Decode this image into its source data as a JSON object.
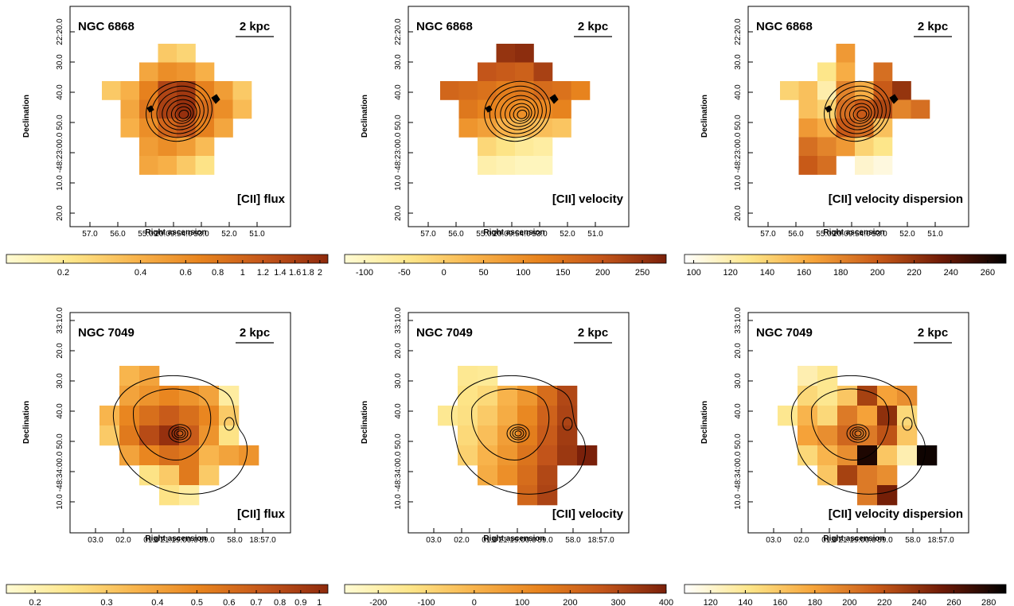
{
  "chart_data": [
    {
      "type": "heatmap",
      "title": "NGC 6868",
      "scalebar": "2 kpc",
      "label": "[CII] flux",
      "xlabel": "Right ascension",
      "ylabel": "Declination",
      "x_tick_labels": [
        "57.0",
        "56.0",
        "55.0",
        "20:09:54.0",
        "53.0",
        "52.0",
        "51.0"
      ],
      "y_tick_labels": [
        "22:20.0",
        "30.0",
        "40.0",
        "50.0",
        "-48:23:00.0",
        "10.0",
        "20.0"
      ],
      "log": true,
      "clim": [
        0.12,
        2.15
      ],
      "cticks": [
        0.2,
        0.4,
        0.6,
        0.8,
        1,
        1.2,
        1.4,
        1.6,
        1.8,
        2
      ],
      "colors": [
        "#fffbd4",
        "#fde68a",
        "#f8b44c",
        "#e8841e",
        "#c4561a",
        "#8f2a0c"
      ],
      "values": [
        [
          null,
          null,
          null,
          0.3,
          0.26,
          null,
          null,
          null
        ],
        [
          null,
          null,
          0.45,
          0.6,
          0.55,
          0.4,
          null,
          null
        ],
        [
          0.3,
          0.4,
          0.7,
          1.5,
          1.8,
          0.7,
          0.5,
          0.3
        ],
        [
          null,
          0.45,
          0.8,
          1.6,
          2.0,
          0.9,
          0.6,
          0.35
        ],
        [
          null,
          0.4,
          0.6,
          1.0,
          1.2,
          0.7,
          0.45,
          null
        ],
        [
          null,
          null,
          0.5,
          0.6,
          0.5,
          0.35,
          null,
          null
        ],
        [
          null,
          null,
          0.45,
          0.4,
          0.3,
          0.22,
          null,
          null
        ]
      ]
    },
    {
      "type": "heatmap",
      "title": "NGC 6868",
      "scalebar": "2 kpc",
      "label": "[CII] velocity",
      "xlabel": "Right ascension",
      "ylabel": "Declination",
      "x_tick_labels": [
        "57.0",
        "56.0",
        "55.0",
        "20:09:54.0",
        "53.0",
        "52.0",
        "51.0"
      ],
      "y_tick_labels": [
        "22:20.0",
        "30.0",
        "40.0",
        "50.0",
        "-48:23:00.0",
        "10.0",
        "20.0"
      ],
      "log": false,
      "clim": [
        -125,
        280
      ],
      "cticks": [
        -100,
        -50,
        0,
        50,
        100,
        150,
        200,
        250
      ],
      "colors": [
        "#fffbd4",
        "#fde68a",
        "#f8b44c",
        "#e8841e",
        "#c4561a",
        "#7a200a"
      ],
      "values": [
        [
          null,
          null,
          null,
          250,
          260,
          null,
          null,
          null
        ],
        [
          null,
          null,
          200,
          190,
          180,
          230,
          null,
          null
        ],
        [
          170,
          160,
          150,
          130,
          140,
          160,
          150,
          120
        ],
        [
          null,
          140,
          120,
          110,
          100,
          110,
          120,
          null
        ],
        [
          null,
          90,
          70,
          40,
          30,
          20,
          10,
          null
        ],
        [
          null,
          null,
          -20,
          -40,
          -60,
          -70,
          null,
          null
        ],
        [
          null,
          null,
          -80,
          -90,
          -100,
          -100,
          null,
          null
        ]
      ]
    },
    {
      "type": "heatmap",
      "title": "NGC 6868",
      "scalebar": "2 kpc",
      "label": "[CII] velocity dispersion",
      "xlabel": "Right ascension",
      "ylabel": "Declination",
      "x_tick_labels": [
        "57.0",
        "56.0",
        "55.0",
        "20:09:54.0",
        "53.0",
        "52.0",
        "51.0"
      ],
      "y_tick_labels": [
        "22:20.0",
        "30.0",
        "40.0",
        "50.0",
        "-48:23:00.0",
        "10.0",
        "20.0"
      ],
      "log": false,
      "clim": [
        95,
        270
      ],
      "cticks": [
        100,
        120,
        140,
        160,
        180,
        200,
        220,
        240,
        260
      ],
      "colors": [
        "#ffffff",
        "#fde68a",
        "#f6a43a",
        "#c85a18",
        "#6e1a06",
        "#000000"
      ],
      "values": [
        [
          null,
          null,
          null,
          170,
          null,
          null,
          null,
          null
        ],
        [
          null,
          null,
          130,
          160,
          null,
          190,
          null,
          null
        ],
        [
          140,
          150,
          120,
          180,
          160,
          200,
          220,
          null
        ],
        [
          null,
          150,
          140,
          190,
          200,
          210,
          180,
          190
        ],
        [
          null,
          170,
          160,
          200,
          190,
          150,
          null,
          null
        ],
        [
          null,
          190,
          180,
          170,
          140,
          130,
          null,
          null
        ],
        [
          null,
          200,
          190,
          null,
          110,
          105,
          null,
          null
        ]
      ]
    },
    {
      "type": "heatmap",
      "title": "NGC 7049",
      "scalebar": "2 kpc",
      "label": "[CII] flux",
      "xlabel": "Right ascension",
      "ylabel": "Declination",
      "x_tick_labels": [
        "03.0",
        "02.0",
        "01.0",
        "21:19:00.0",
        "59.0",
        "58.0",
        "18:57.0"
      ],
      "y_tick_labels": [
        "33:10.0",
        "20.0",
        "30.0",
        "40.0",
        "50.0",
        "-48:34:00.0",
        "10.0"
      ],
      "log": true,
      "clim": [
        0.17,
        1.05
      ],
      "cticks": [
        0.2,
        0.3,
        0.4,
        0.5,
        0.6,
        0.7,
        0.8,
        0.9,
        1
      ],
      "colors": [
        "#fffbd4",
        "#fde68a",
        "#f8b44c",
        "#e8841e",
        "#c4561a",
        "#8f2a0c"
      ],
      "values": [
        [
          null,
          0.35,
          0.4,
          null,
          null,
          null,
          null,
          null
        ],
        [
          null,
          0.4,
          0.45,
          0.5,
          0.45,
          0.4,
          0.22,
          null
        ],
        [
          0.35,
          0.5,
          0.6,
          0.7,
          0.6,
          0.5,
          0.3,
          null
        ],
        [
          0.3,
          0.55,
          0.8,
          1.0,
          0.7,
          0.45,
          0.25,
          null
        ],
        [
          null,
          0.4,
          0.5,
          0.6,
          0.55,
          0.35,
          0.4,
          0.45
        ],
        [
          null,
          null,
          0.25,
          0.3,
          0.55,
          0.3,
          null,
          null
        ],
        [
          null,
          null,
          null,
          0.25,
          0.22,
          null,
          null,
          null
        ]
      ]
    },
    {
      "type": "heatmap",
      "title": "NGC 7049",
      "scalebar": "2 kpc",
      "label": "[CII] velocity",
      "xlabel": "Right ascension",
      "ylabel": "Declination",
      "x_tick_labels": [
        "03.0",
        "02.0",
        "01.0",
        "21:19:00.0",
        "59.0",
        "58.0",
        "18:57.0"
      ],
      "y_tick_labels": [
        "33:10.0",
        "20.0",
        "30.0",
        "40.0",
        "50.0",
        "-48:34:00.0",
        "10.0"
      ],
      "log": false,
      "clim": [
        -270,
        400
      ],
      "cticks": [
        -200,
        -100,
        0,
        100,
        200,
        300,
        400
      ],
      "colors": [
        "#fffbd4",
        "#fde68a",
        "#f8b44c",
        "#e8841e",
        "#c4561a",
        "#7a200a"
      ],
      "values": [
        [
          null,
          -150,
          -160,
          null,
          null,
          null,
          null,
          null
        ],
        [
          null,
          -130,
          -100,
          0,
          80,
          200,
          300,
          null
        ],
        [
          -150,
          -120,
          -60,
          20,
          120,
          230,
          310,
          null
        ],
        [
          null,
          -100,
          -30,
          60,
          150,
          250,
          330,
          null
        ],
        [
          null,
          -80,
          0,
          80,
          180,
          270,
          340,
          400
        ],
        [
          null,
          null,
          20,
          100,
          200,
          300,
          null,
          null
        ],
        [
          null,
          null,
          null,
          null,
          220,
          310,
          null,
          null
        ]
      ]
    },
    {
      "type": "heatmap",
      "title": "NGC 7049",
      "scalebar": "2 kpc",
      "label": "[CII] velocity dispersion",
      "xlabel": "Right ascension",
      "ylabel": "Declination",
      "x_tick_labels": [
        "03.0",
        "02.0",
        "01.0",
        "21:19:00.0",
        "59.0",
        "58.0",
        "18:57.0"
      ],
      "y_tick_labels": [
        "33:10.0",
        "20.0",
        "30.0",
        "40.0",
        "50.0",
        "-48:34:00.0",
        "10.0"
      ],
      "log": false,
      "clim": [
        105,
        290
      ],
      "cticks": [
        120,
        140,
        160,
        180,
        200,
        220,
        240,
        260,
        280
      ],
      "colors": [
        "#ffffff",
        "#fde68a",
        "#f6a43a",
        "#c85a18",
        "#6e1a06",
        "#000000"
      ],
      "values": [
        [
          null,
          130,
          140,
          null,
          null,
          null,
          null,
          null
        ],
        [
          null,
          150,
          140,
          160,
          230,
          180,
          190,
          null
        ],
        [
          140,
          170,
          150,
          200,
          180,
          240,
          150,
          null
        ],
        [
          null,
          180,
          190,
          210,
          200,
          220,
          160,
          null
        ],
        [
          null,
          150,
          170,
          190,
          280,
          160,
          130,
          285
        ],
        [
          null,
          null,
          160,
          230,
          200,
          190,
          null,
          null
        ],
        [
          null,
          null,
          null,
          null,
          200,
          250,
          null,
          null
        ]
      ]
    }
  ]
}
